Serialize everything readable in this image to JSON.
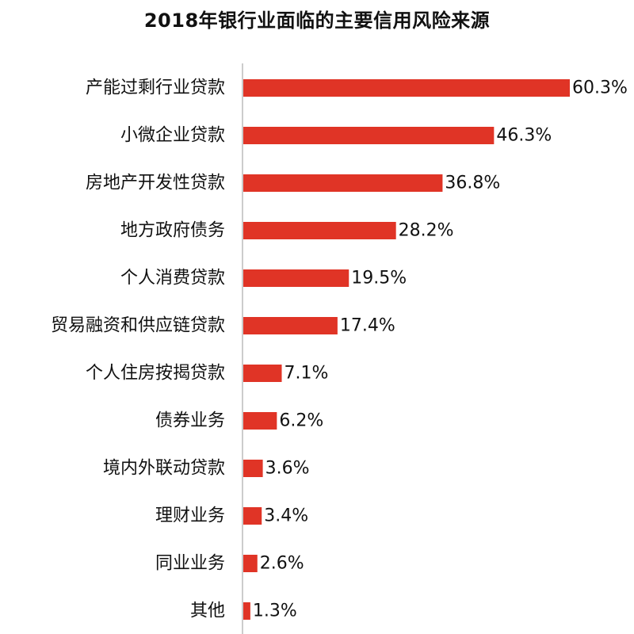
{
  "chart_data": {
    "type": "bar",
    "orientation": "horizontal",
    "title": "2018年银行业面临的主要信用风险来源",
    "xlabel": "",
    "ylabel": "",
    "categories": [
      "产能过剩行业贷款",
      "小微企业贷款",
      "房地产开发性贷款",
      "地方政府债务",
      "个人消费贷款",
      "贸易融资和供应链贷款",
      "个人住房按揭贷款",
      "债券业务",
      "境内外联动贷款",
      "理财业务",
      "同业业务",
      "其他"
    ],
    "values": [
      60.3,
      46.3,
      36.8,
      28.2,
      19.5,
      17.4,
      7.1,
      6.2,
      3.6,
      3.4,
      2.6,
      1.3
    ],
    "value_labels": [
      "60.3%",
      "46.3%",
      "36.8%",
      "28.2%",
      "19.5%",
      "17.4%",
      "7.1%",
      "6.2%",
      "3.6%",
      "3.4%",
      "2.6%",
      "1.3%"
    ],
    "xlim": [
      0,
      60.3
    ],
    "bar_color": "#e03426",
    "axis_color": "#bbbbbb",
    "grid": false,
    "legend": "none"
  }
}
